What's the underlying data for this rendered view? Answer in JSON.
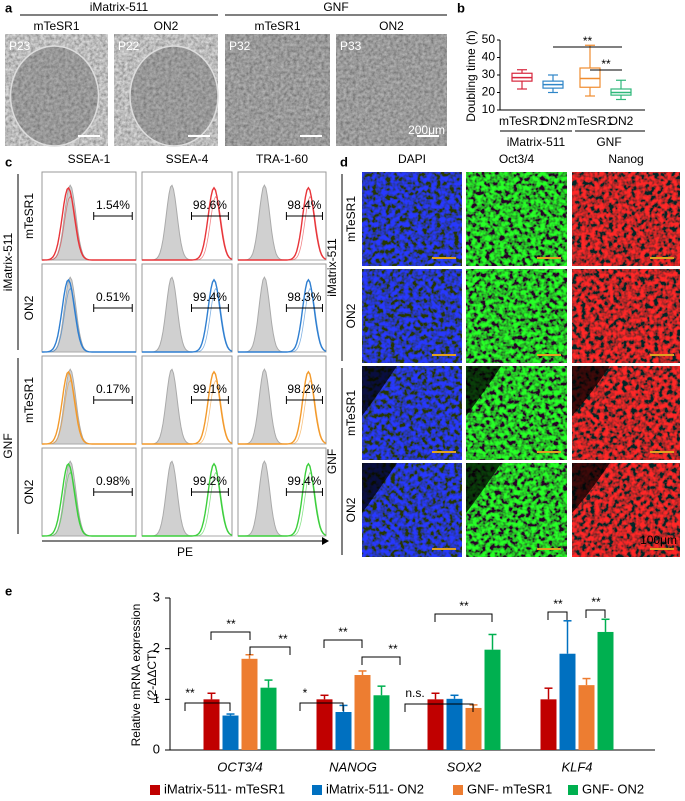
{
  "figure": {
    "panel_labels": [
      "a",
      "b",
      "c",
      "d",
      "e"
    ],
    "panel_a": {
      "groups": [
        "iMatrix-511",
        "GNF"
      ],
      "media": [
        "mTeSR1",
        "ON2",
        "mTeSR1",
        "ON2"
      ],
      "passages": [
        "P23",
        "P22",
        "P32",
        "P33"
      ],
      "scale_bar": "200μm"
    },
    "panel_c": {
      "markers": [
        "SSEA-1",
        "SSEA-4",
        "TRA-1-60"
      ],
      "matrices": [
        "iMatrix-511",
        "GNF"
      ],
      "media": [
        "mTeSR1",
        "ON2",
        "mTeSR1",
        "ON2"
      ],
      "percentages": [
        [
          "1.54%",
          "98.6%",
          "98.4%"
        ],
        [
          "0.51%",
          "99.4%",
          "98.3%"
        ],
        [
          "0.17%",
          "99.1%",
          "98.2%"
        ],
        [
          "0.98%",
          "99.2%",
          "99.4%"
        ]
      ],
      "colors": [
        "#e8353a",
        "#2f7fd1",
        "#f39a2b",
        "#3ccf3c"
      ],
      "x_label": "PE"
    },
    "panel_d": {
      "stains": [
        "DAPI",
        "Oct3/4",
        "Nanog"
      ],
      "stain_colors": [
        "#2a3cf0",
        "#2db82d",
        "#d42020"
      ],
      "matrices": [
        "iMatrix-511",
        "GNF"
      ],
      "media": [
        "mTeSR1",
        "ON2",
        "mTeSR1",
        "ON2"
      ],
      "scale_bar": "100μm"
    }
  },
  "chart_data": [
    {
      "type": "box",
      "y_label": "Doubling time (h)",
      "ylim": [
        10,
        50
      ],
      "yticks": [
        10,
        20,
        30,
        40,
        50
      ],
      "categories": [
        "mTeSR1",
        "ON2",
        "mTeSR1",
        "ON2"
      ],
      "groups": [
        "iMatrix-511",
        "GNF"
      ],
      "colors": [
        "#d7263d",
        "#2f86c8",
        "#f08c2e",
        "#2fb87a"
      ],
      "min": [
        22,
        20,
        18,
        16
      ],
      "q1": [
        26.5,
        22.5,
        23,
        18.5
      ],
      "median": [
        28.5,
        24.5,
        28,
        20
      ],
      "q3": [
        31,
        26.5,
        34,
        22
      ],
      "max": [
        33,
        30,
        47,
        27
      ],
      "annotations": [
        "**",
        "**"
      ]
    },
    {
      "type": "bar",
      "y_label": "Relative mRNA expression",
      "y_label_unit": "(2-ΔΔCT)",
      "ylim": [
        0,
        3
      ],
      "yticks": [
        0,
        1,
        2,
        3
      ],
      "categories": [
        "OCT3/4",
        "NANOG",
        "SOX2",
        "KLF4"
      ],
      "series": [
        {
          "name": "iMatrix-511- mTeSR1",
          "color": "#c00000",
          "values": [
            1,
            1,
            1,
            1
          ],
          "errors": [
            0.12,
            0.08,
            0.12,
            0.22
          ]
        },
        {
          "name": "iMatrix-511- ON2",
          "color": "#0070c0",
          "values": [
            0.68,
            0.75,
            1.01,
            1.9
          ],
          "errors": [
            0.03,
            0.13,
            0.07,
            0.65
          ]
        },
        {
          "name": "GNF- mTeSR1",
          "color": "#ed7d31",
          "values": [
            1.8,
            1.48,
            0.83,
            1.28
          ],
          "errors": [
            0.08,
            0.08,
            0.06,
            0.13
          ]
        },
        {
          "name": "GNF- ON2",
          "color": "#00b050",
          "values": [
            1.23,
            1.08,
            1.98,
            2.33
          ],
          "errors": [
            0.15,
            0.18,
            0.3,
            0.25
          ]
        }
      ],
      "annotations": [
        "**",
        "**",
        "**",
        "*",
        "**",
        "**",
        "n.s.",
        "**",
        "**",
        "**"
      ]
    }
  ]
}
